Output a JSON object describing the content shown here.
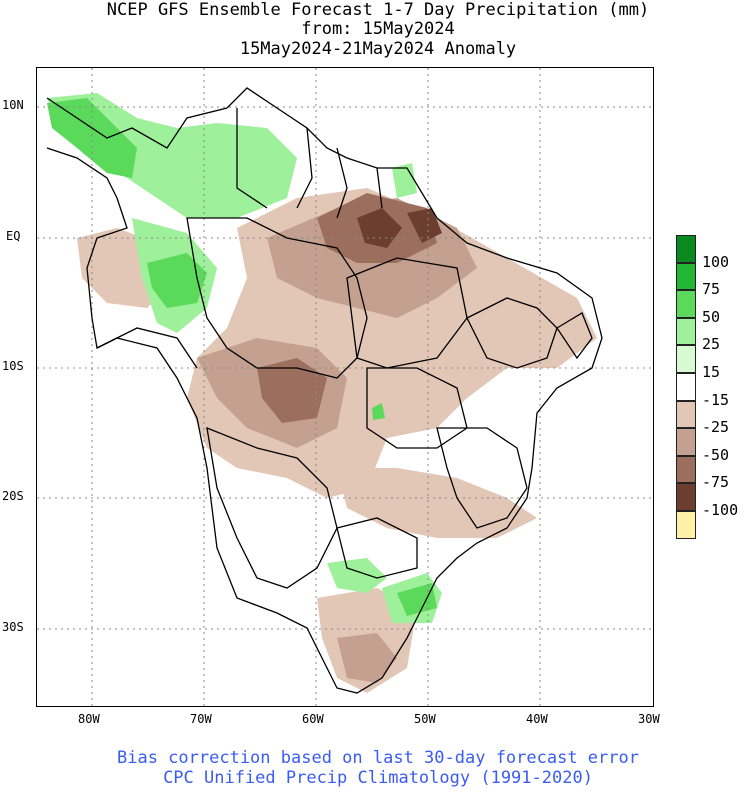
{
  "title": {
    "line1": "NCEP GFS Ensemble Forecast 1-7 Day Precipitation (mm)",
    "line2": "from: 15May2024",
    "line3": "15May2024-21May2024 Anomaly"
  },
  "axes": {
    "lat_labels": [
      "10N",
      "EQ",
      "10S",
      "20S",
      "30S"
    ],
    "lon_labels": [
      "80W",
      "70W",
      "60W",
      "50W",
      "40W",
      "30W"
    ]
  },
  "legend": {
    "labels": [
      "100",
      "75",
      "50",
      "25",
      "15",
      "-15",
      "-25",
      "-50",
      "-75",
      "-100"
    ],
    "colors": [
      "#0a8a1e",
      "#22b634",
      "#5ad95a",
      "#9ef09a",
      "#d8fad2",
      "#ffffff",
      "#e2c6b6",
      "#c4a090",
      "#9c6e5e",
      "#6c3e30",
      "#fff2a8"
    ]
  },
  "footer": {
    "line1": "Bias correction based on last 30-day forecast error",
    "line2": "CPC Unified Precip Climatology (1991-2020)"
  }
}
